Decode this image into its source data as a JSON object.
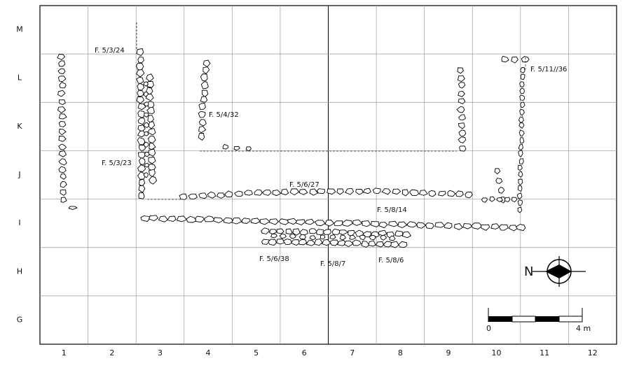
{
  "grid": {
    "rows": [
      "M",
      "L",
      "K",
      "J",
      "I",
      "H",
      "G"
    ],
    "columns": [
      "1",
      "2",
      "3",
      "4",
      "5",
      "6",
      "7",
      "8",
      "9",
      "10",
      "11",
      "12"
    ]
  },
  "features": [
    {
      "label": "F. 5/3/24"
    },
    {
      "label": "F. 5/11//36"
    },
    {
      "label": "F. 5/4/32"
    },
    {
      "label": "F. 5/3/23"
    },
    {
      "label": "F. 5/6/27"
    },
    {
      "label": "F. 5/8/14"
    },
    {
      "label": "F. 5/6/38"
    },
    {
      "label": "F. 5/8/7"
    },
    {
      "label": "F. 5/8/6"
    }
  ],
  "north": "N",
  "scale": {
    "start": "0",
    "end": "4 m"
  }
}
